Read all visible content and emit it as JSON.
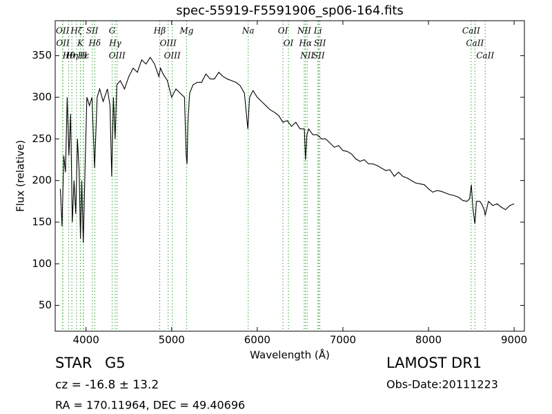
{
  "chart_data": {
    "type": "line",
    "title": "spec-55919-F5591906_sp06-164.fits",
    "x_label": "Wavelength (Å)",
    "y_label": "Flux (relative)",
    "xlim": [
      3640,
      9120
    ],
    "ylim": [
      19,
      392
    ],
    "xticks": [
      4000,
      5000,
      6000,
      7000,
      8000,
      9000
    ],
    "yticks": [
      50,
      100,
      150,
      200,
      250,
      300,
      350
    ],
    "series": [
      {
        "color": "#000000",
        "x": [
          3700,
          3720,
          3740,
          3760,
          3780,
          3800,
          3820,
          3840,
          3860,
          3880,
          3900,
          3920,
          3935,
          3950,
          3968,
          3990,
          4010,
          4040,
          4070,
          4100,
          4130,
          4160,
          4200,
          4250,
          4280,
          4300,
          4320,
          4340,
          4360,
          4400,
          4450,
          4500,
          4550,
          4600,
          4650,
          4700,
          4750,
          4800,
          4850,
          4870,
          4900,
          4950,
          5000,
          5050,
          5100,
          5150,
          5170,
          5180,
          5190,
          5210,
          5250,
          5300,
          5350,
          5400,
          5450,
          5500,
          5550,
          5600,
          5650,
          5700,
          5750,
          5800,
          5850,
          5890,
          5910,
          5950,
          6000,
          6050,
          6100,
          6150,
          6200,
          6250,
          6300,
          6350,
          6400,
          6450,
          6500,
          6550,
          6563,
          6580,
          6600,
          6650,
          6700,
          6750,
          6800,
          6850,
          6900,
          6950,
          7000,
          7050,
          7100,
          7150,
          7200,
          7250,
          7300,
          7350,
          7400,
          7450,
          7500,
          7550,
          7600,
          7650,
          7700,
          7750,
          7800,
          7850,
          7900,
          7950,
          8000,
          8050,
          8100,
          8150,
          8200,
          8250,
          8300,
          8350,
          8400,
          8450,
          8480,
          8500,
          8520,
          8542,
          8560,
          8600,
          8620,
          8650,
          8662,
          8700,
          8750,
          8800,
          8850,
          8900,
          8950,
          9000
        ],
        "values": [
          190,
          145,
          230,
          210,
          300,
          230,
          280,
          150,
          200,
          160,
          250,
          210,
          130,
          200,
          125,
          220,
          300,
          290,
          300,
          215,
          300,
          310,
          295,
          310,
          290,
          205,
          300,
          250,
          315,
          320,
          310,
          325,
          335,
          330,
          345,
          340,
          348,
          340,
          325,
          335,
          328,
          320,
          300,
          310,
          305,
          300,
          230,
          220,
          270,
          305,
          315,
          318,
          318,
          328,
          322,
          322,
          330,
          325,
          322,
          320,
          318,
          314,
          305,
          262,
          300,
          308,
          300,
          295,
          290,
          285,
          282,
          278,
          270,
          272,
          265,
          270,
          262,
          262,
          225,
          255,
          262,
          255,
          255,
          250,
          250,
          245,
          240,
          242,
          236,
          235,
          232,
          226,
          223,
          225,
          220,
          220,
          218,
          215,
          212,
          213,
          205,
          210,
          205,
          203,
          200,
          197,
          196,
          195,
          190,
          186,
          188,
          187,
          185,
          183,
          182,
          180,
          176,
          175,
          178,
          195,
          165,
          148,
          175,
          175,
          172,
          165,
          158,
          175,
          170,
          172,
          168,
          165,
          170,
          172
        ]
      }
    ],
    "line_color": "#2ca02c",
    "lines": [
      {
        "label": "OII",
        "wavelength": 3726
      },
      {
        "label": "OII",
        "wavelength": 3729
      },
      {
        "label": "Hθ",
        "wavelength": 3798
      },
      {
        "label": "Hη",
        "wavelength": 3835
      },
      {
        "label": "Hζ",
        "wavelength": 3889
      },
      {
        "label": "K",
        "wavelength": 3934
      },
      {
        "label": "H",
        "wavelength": 3968
      },
      {
        "label": "Hε",
        "wavelength": 3970
      },
      {
        "label": "SII",
        "wavelength": 4072
      },
      {
        "label": "Hδ",
        "wavelength": 4102
      },
      {
        "label": "G",
        "wavelength": 4305
      },
      {
        "label": "Hγ",
        "wavelength": 4341
      },
      {
        "label": "OIII",
        "wavelength": 4363
      },
      {
        "label": "Hβ",
        "wavelength": 4861
      },
      {
        "label": "OIII",
        "wavelength": 4959
      },
      {
        "label": "OIII",
        "wavelength": 5007
      },
      {
        "label": "Mg",
        "wavelength": 5175
      },
      {
        "label": "Na",
        "wavelength": 5894
      },
      {
        "label": "OI",
        "wavelength": 6300
      },
      {
        "label": "OI",
        "wavelength": 6364
      },
      {
        "label": "NII",
        "wavelength": 6548
      },
      {
        "label": "Hα",
        "wavelength": 6563
      },
      {
        "label": "NII",
        "wavelength": 6583
      },
      {
        "label": "Li",
        "wavelength": 6708
      },
      {
        "label": "SII",
        "wavelength": 6717
      },
      {
        "label": "SII",
        "wavelength": 6731
      },
      {
        "label": "CaII",
        "wavelength": 8498
      },
      {
        "label": "CaII",
        "wavelength": 8542
      },
      {
        "label": "CaII",
        "wavelength": 8662
      }
    ],
    "object_class": "STAR",
    "subclass": "G5",
    "redshift": "cz = -16.8 ± 13.2",
    "position": "RA = 170.11964, DEC = 49.40696",
    "survey": "LAMOST DR1",
    "obs_date": "Obs-Date:20111223"
  }
}
